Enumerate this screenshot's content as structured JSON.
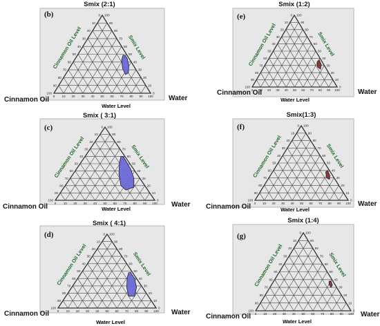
{
  "colors": {
    "background": "#e7e7e7",
    "axis_label": "#1e6b2a",
    "region_blue": "#6a6ad8",
    "region_red": "#8a2e36"
  },
  "chart_data": [
    {
      "type": "ternary",
      "panel": "(b)",
      "title": "Smix (2:1)",
      "corners": {
        "top": "Smix",
        "left": "Cinnamon Oil",
        "right": "Water"
      },
      "axis_labels": {
        "bottom": "Water Level",
        "left": "Cinnamon Oil Level",
        "right": "Smix Level"
      },
      "ticks": [
        0,
        10,
        20,
        30,
        40,
        50,
        60,
        70,
        80,
        90,
        100
      ],
      "region_color": "#6a6ad8",
      "region": [
        {
          "oil": 2,
          "water": 50,
          "smix": 48
        },
        {
          "oil": 2,
          "water": 54,
          "smix": 44
        },
        {
          "oil": 5,
          "water": 60,
          "smix": 35
        },
        {
          "oil": 10,
          "water": 64,
          "smix": 26
        },
        {
          "oil": 14,
          "water": 62,
          "smix": 24
        },
        {
          "oil": 13,
          "water": 55,
          "smix": 32
        },
        {
          "oil": 9,
          "water": 49,
          "smix": 42
        },
        {
          "oil": 4,
          "water": 47,
          "smix": 49
        }
      ]
    },
    {
      "type": "ternary",
      "panel": "(c)",
      "title": "Smix ( 3:1)",
      "corners": {
        "top": "Smix",
        "left": "Cinnamon Oil",
        "right": "Water"
      },
      "axis_labels": {
        "bottom": "Water Level",
        "left": "Cinnamon Oil Level",
        "right": "Smix Level"
      },
      "ticks": [
        0,
        10,
        20,
        30,
        40,
        50,
        60,
        70,
        80,
        90,
        100
      ],
      "region_color": "#6a6ad8",
      "region": [
        {
          "oil": 2,
          "water": 38,
          "smix": 60
        },
        {
          "oil": 2,
          "water": 44,
          "smix": 54
        },
        {
          "oil": 3,
          "water": 55,
          "smix": 42
        },
        {
          "oil": 6,
          "water": 64,
          "smix": 30
        },
        {
          "oil": 12,
          "water": 70,
          "smix": 18
        },
        {
          "oil": 22,
          "water": 64,
          "smix": 14
        },
        {
          "oil": 24,
          "water": 56,
          "smix": 20
        },
        {
          "oil": 18,
          "water": 46,
          "smix": 36
        },
        {
          "oil": 10,
          "water": 39,
          "smix": 51
        },
        {
          "oil": 4,
          "water": 36,
          "smix": 60
        }
      ]
    },
    {
      "type": "ternary",
      "panel": "(d)",
      "title": "Smix ( 4:1)",
      "corners": {
        "top": "Smix",
        "left": "Cinnamon Oil",
        "right": "Water"
      },
      "axis_labels": {
        "bottom": "Water Level",
        "left": "Cinnamon Oil Level",
        "right": "Smix Level"
      },
      "ticks": [
        0,
        10,
        20,
        30,
        40,
        50,
        60,
        70,
        80,
        90,
        100
      ],
      "region_color": "#6a6ad8",
      "region": [
        {
          "oil": 2,
          "water": 50,
          "smix": 48
        },
        {
          "oil": 2,
          "water": 58,
          "smix": 40
        },
        {
          "oil": 6,
          "water": 66,
          "smix": 28
        },
        {
          "oil": 14,
          "water": 70,
          "smix": 16
        },
        {
          "oil": 20,
          "water": 64,
          "smix": 16
        },
        {
          "oil": 16,
          "water": 56,
          "smix": 28
        },
        {
          "oil": 9,
          "water": 50,
          "smix": 41
        },
        {
          "oil": 4,
          "water": 48,
          "smix": 48
        }
      ]
    },
    {
      "type": "ternary",
      "panel": "(e)",
      "title": "Smix (1:2)",
      "corners": {
        "top": "Smix",
        "left": "Cinnamon Oil",
        "right": "Water"
      },
      "axis_labels": {
        "bottom": "Water Level",
        "left": "Cinnamon Oil Level",
        "right": "Smix Level"
      },
      "ticks": [
        0,
        10,
        20,
        30,
        40,
        50,
        60,
        70,
        80,
        90,
        100
      ],
      "region_color": "#8a2e36",
      "region": [
        {
          "oil": 2,
          "water": 60,
          "smix": 38
        },
        {
          "oil": 3,
          "water": 66,
          "smix": 31
        },
        {
          "oil": 7,
          "water": 68,
          "smix": 25
        },
        {
          "oil": 9,
          "water": 63,
          "smix": 28
        },
        {
          "oil": 6,
          "water": 59,
          "smix": 35
        }
      ]
    },
    {
      "type": "ternary",
      "panel": "(f)",
      "title": "Smix(1:3)",
      "corners": {
        "top": "Smix",
        "left": "Cinnamon Oil",
        "right": "Water"
      },
      "axis_labels": {
        "bottom": "Water Level",
        "left": "Cinnamon Oil Level",
        "right": "Smix Level"
      },
      "ticks": [
        0,
        10,
        20,
        30,
        40,
        50,
        60,
        70,
        80,
        90,
        100
      ],
      "region_color": "#8a2e36",
      "region": [
        {
          "oil": 2,
          "water": 58,
          "smix": 40
        },
        {
          "oil": 3,
          "water": 64,
          "smix": 33
        },
        {
          "oil": 6,
          "water": 66,
          "smix": 28
        },
        {
          "oil": 8,
          "water": 62,
          "smix": 30
        },
        {
          "oil": 5,
          "water": 57,
          "smix": 38
        }
      ]
    },
    {
      "type": "ternary",
      "panel": "(g)",
      "title": "Smix (1:4)",
      "corners": {
        "top": "Smix",
        "left": "Cinnamon Oil",
        "right": "Water"
      },
      "axis_labels": {
        "bottom": "Water Level",
        "left": "Cinnamon Oil Level",
        "right": "Smix Level"
      },
      "ticks": [
        0,
        10,
        20,
        30,
        40,
        50,
        60,
        70,
        80,
        90,
        100
      ],
      "region_color": "#8a2e36",
      "region": [
        {
          "oil": 2,
          "water": 60,
          "smix": 38
        },
        {
          "oil": 3,
          "water": 64,
          "smix": 33
        },
        {
          "oil": 6,
          "water": 64,
          "smix": 30
        },
        {
          "oil": 6,
          "water": 60,
          "smix": 34
        },
        {
          "oil": 4,
          "water": 58,
          "smix": 38
        }
      ]
    }
  ]
}
